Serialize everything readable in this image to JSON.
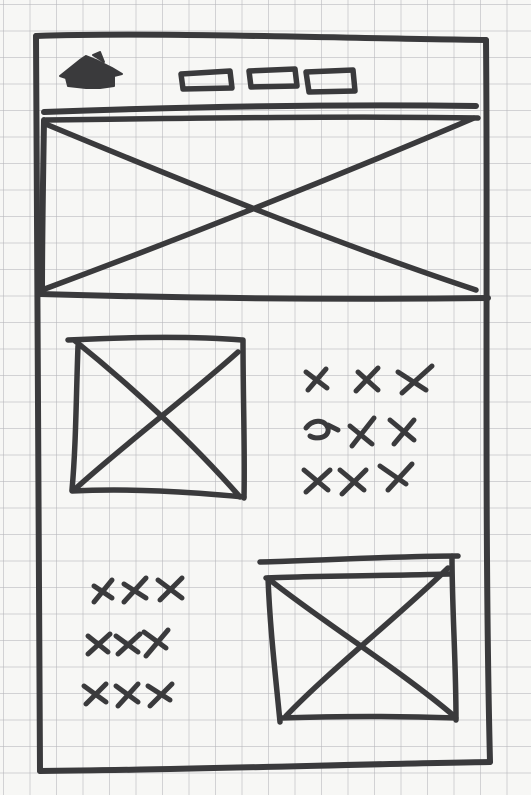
{
  "sketch": {
    "kind": "hand-drawn mobile wireframe",
    "ink_color": "#3a3a3c",
    "paper_color": "#f7f7f5",
    "grid_color": "#b4b4b9",
    "header": {
      "logo_icon": "house-icon",
      "nav_items": [
        "nav-item",
        "nav-item",
        "nav-item"
      ]
    },
    "hero": {
      "placeholder": "image-placeholder"
    },
    "feature_1": {
      "image": "image-placeholder",
      "text_lines": 3
    },
    "feature_2": {
      "image": "image-placeholder",
      "text_lines": 3
    }
  }
}
